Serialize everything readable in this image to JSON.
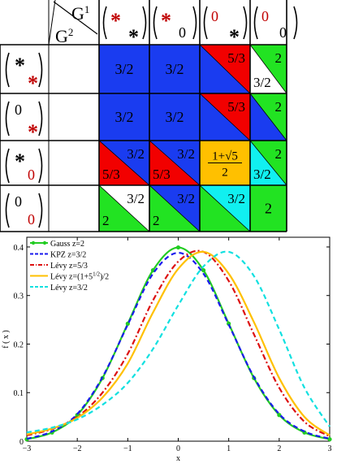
{
  "colors": {
    "blue": "#1a3cf0",
    "red": "#f20000",
    "green": "#22e322",
    "cyan": "#11f0f0",
    "yellow": "#ffc000",
    "white": "#ffffff",
    "black": "#000000",
    "dark_red": "#c00000"
  },
  "table": {
    "header": {
      "g1": "G",
      "g1_sup": "1",
      "g2": "G",
      "g2_sup": "2"
    },
    "columns": [
      {
        "top": "*",
        "top_color": "#c00000",
        "bottom": "*",
        "bottom_color": "#000000"
      },
      {
        "top": "*",
        "top_color": "#c00000",
        "bottom": "0",
        "bottom_color": "#000000"
      },
      {
        "top": "0",
        "top_color": "#c00000",
        "bottom": "*",
        "bottom_color": "#000000"
      },
      {
        "top": "0",
        "top_color": "#c00000",
        "bottom": "0",
        "bottom_color": "#000000"
      }
    ],
    "rows": [
      {
        "top": "*",
        "top_color": "#000000",
        "bottom": "*",
        "bottom_color": "#c00000"
      },
      {
        "top": "0",
        "top_color": "#000000",
        "bottom": "*",
        "bottom_color": "#c00000"
      },
      {
        "top": "*",
        "top_color": "#000000",
        "bottom": "0",
        "bottom_color": "#c00000"
      },
      {
        "top": "0",
        "top_color": "#000000",
        "bottom": "0",
        "bottom_color": "#c00000"
      }
    ],
    "cells": [
      [
        {
          "type": "full",
          "color": "blue",
          "label": "3/2"
        },
        {
          "type": "full",
          "color": "blue",
          "label": "3/2"
        },
        {
          "type": "split",
          "upper": "red",
          "lower": "blue",
          "upper_label": "5/3",
          "lower_label": ""
        },
        {
          "type": "split",
          "upper": "green",
          "lower": "white",
          "upper_label": "2",
          "lower_label": "3/2"
        }
      ],
      [
        {
          "type": "full",
          "color": "blue",
          "label": "3/2"
        },
        {
          "type": "full",
          "color": "blue",
          "label": "3/2"
        },
        {
          "type": "split",
          "upper": "red",
          "lower": "blue",
          "upper_label": "5/3",
          "lower_label": ""
        },
        {
          "type": "split",
          "upper": "green",
          "lower": "blue",
          "upper_label": "2",
          "lower_label": ""
        }
      ],
      [
        {
          "type": "split",
          "upper": "blue",
          "lower": "red",
          "upper_label": "3/2",
          "lower_label": "5/3"
        },
        {
          "type": "split",
          "upper": "blue",
          "lower": "red",
          "upper_label": "3/2",
          "lower_label": "5/3"
        },
        {
          "type": "frac",
          "color": "yellow",
          "numerator": "1+√5",
          "denominator": "2"
        },
        {
          "type": "split",
          "upper": "green",
          "lower": "cyan",
          "upper_label": "2",
          "lower_label": "3/2"
        }
      ],
      [
        {
          "type": "split",
          "upper": "white",
          "lower": "green",
          "upper_label": "3/2",
          "lower_label": "2"
        },
        {
          "type": "split",
          "upper": "blue",
          "lower": "green",
          "upper_label": "3/2",
          "lower_label": "2"
        },
        {
          "type": "split",
          "upper": "cyan",
          "lower": "green",
          "upper_label": "3/2",
          "lower_label": ""
        },
        {
          "type": "full",
          "color": "green",
          "label": "2"
        }
      ]
    ]
  },
  "chart_data": {
    "type": "line",
    "xlabel": "x",
    "ylabel": "f ( x )",
    "xlim": [
      -3,
      3
    ],
    "ylim": [
      0,
      0.42
    ],
    "xticks": [
      -3,
      -2,
      -1,
      0,
      1,
      2,
      3
    ],
    "yticks": [
      0,
      0.1,
      0.2,
      0.3,
      0.4
    ],
    "xtick_labels": [
      "−3",
      "−2",
      "−1",
      "0",
      "1",
      "2",
      "3"
    ],
    "ytick_labels": [
      "0",
      "0.1",
      "0.2",
      "0.3",
      "0.4"
    ],
    "legend_position": "top-left",
    "grid": false,
    "series": [
      {
        "name": "Gauss z=2",
        "color": "#22cc22",
        "style": "solid-dots",
        "x": [
          -3,
          -2.5,
          -2,
          -1.5,
          -1,
          -0.5,
          0,
          0.5,
          1,
          1.5,
          2,
          2.5,
          3
        ],
        "y": [
          0.004,
          0.018,
          0.054,
          0.13,
          0.242,
          0.352,
          0.399,
          0.352,
          0.242,
          0.13,
          0.054,
          0.018,
          0.004
        ]
      },
      {
        "name": "KPZ z=3/2",
        "color": "#1a1aee",
        "style": "dashed",
        "x": [
          -3,
          -2.5,
          -2,
          -1.5,
          -1,
          -0.5,
          0,
          0.5,
          1,
          1.5,
          2,
          2.5,
          3
        ],
        "y": [
          0.005,
          0.02,
          0.056,
          0.132,
          0.24,
          0.345,
          0.388,
          0.345,
          0.24,
          0.132,
          0.056,
          0.02,
          0.005
        ]
      },
      {
        "name": "Lévy z=5/3",
        "color": "#dd1111",
        "style": "dashdot",
        "x": [
          -3,
          -2.5,
          -2,
          -1.5,
          -1,
          -0.5,
          0,
          0.5,
          1,
          1.5,
          2,
          2.5,
          3
        ],
        "y": [
          0.012,
          0.025,
          0.05,
          0.1,
          0.18,
          0.29,
          0.37,
          0.39,
          0.33,
          0.22,
          0.11,
          0.04,
          0.01
        ]
      },
      {
        "name": "Lévy z=(1+5",
        "name_sup": "1/2",
        "name_tail": ")/2",
        "color": "#ffc000",
        "style": "solid",
        "x": [
          -3,
          -2.5,
          -2,
          -1.5,
          -1,
          -0.5,
          0,
          0.5,
          1,
          1.5,
          2,
          2.5,
          3
        ],
        "y": [
          0.014,
          0.026,
          0.048,
          0.09,
          0.16,
          0.265,
          0.355,
          0.39,
          0.345,
          0.245,
          0.13,
          0.05,
          0.012
        ]
      },
      {
        "name": "Lévy z=3/2",
        "color": "#11e0e0",
        "style": "dashed",
        "x": [
          -3,
          -2.5,
          -2,
          -1.5,
          -1,
          -0.5,
          0,
          0.5,
          1,
          1.5,
          2,
          2.5,
          3
        ],
        "y": [
          0.018,
          0.028,
          0.045,
          0.075,
          0.12,
          0.19,
          0.28,
          0.36,
          0.39,
          0.34,
          0.23,
          0.11,
          0.03
        ]
      }
    ]
  }
}
